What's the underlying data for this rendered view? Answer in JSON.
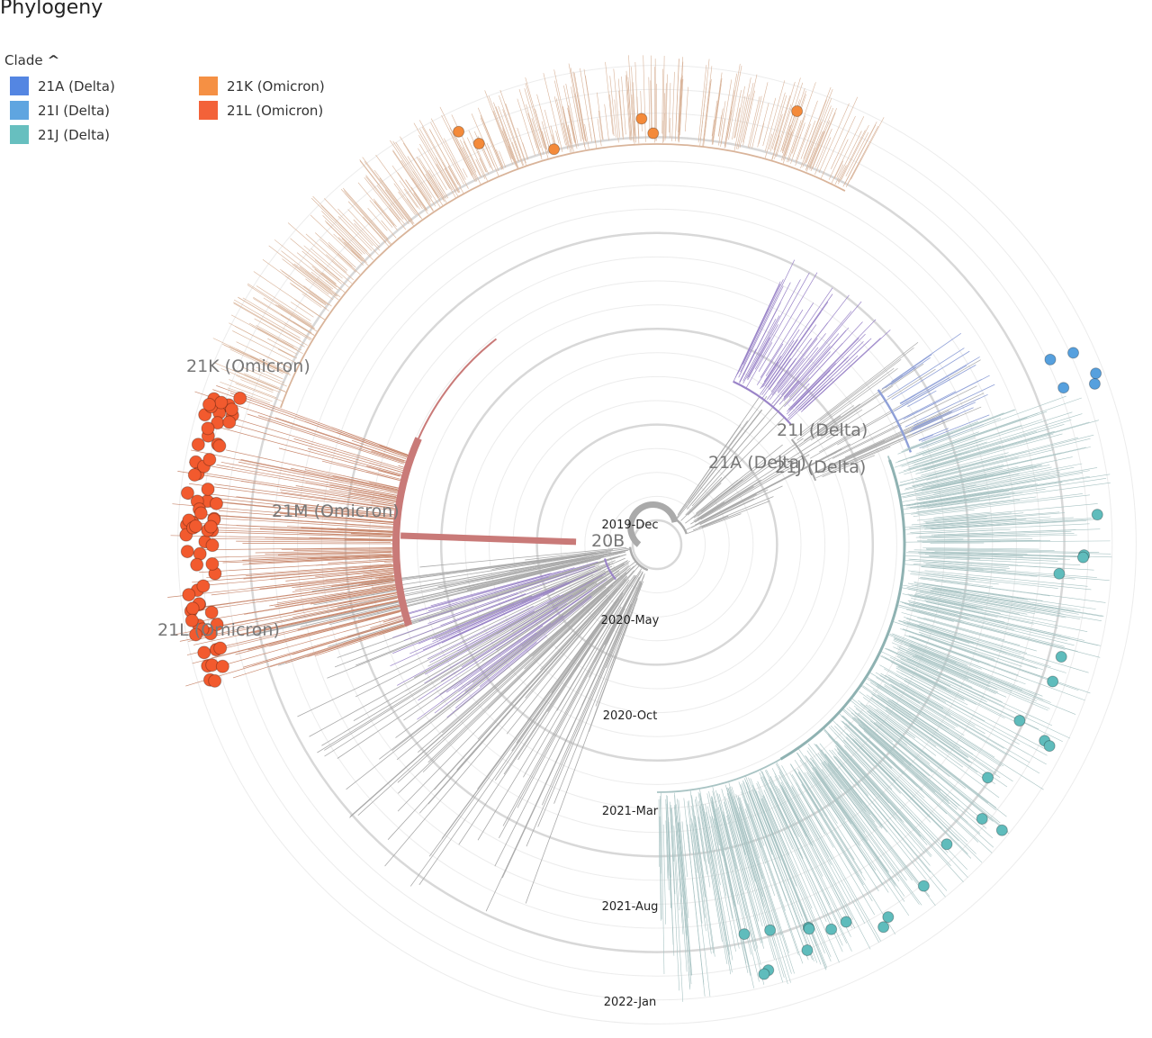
{
  "title": "Phylogeny",
  "legend": {
    "label": "Clade",
    "items": [
      {
        "label": "21A (Delta)",
        "color": "#4b7fe0"
      },
      {
        "label": "21I (Delta)",
        "color": "#56a0de"
      },
      {
        "label": "21J (Delta)",
        "color": "#5fbcbc"
      },
      {
        "label": "21K (Omicron)",
        "color": "#f48a3a"
      },
      {
        "label": "21L (Omicron)",
        "color": "#f25a2e"
      }
    ]
  },
  "chart_data": {
    "type": "radial-phylogeny",
    "time_axis": [
      "2019-Dec",
      "2020-May",
      "2020-Oct",
      "2021-Mar",
      "2021-Aug",
      "2022-Jan"
    ],
    "clade_labels": [
      "20B",
      "21A (Delta)",
      "21I (Delta)",
      "21J (Delta)",
      "21K (Omicron)",
      "21L (Omicron)",
      "21M (Omicron)"
    ],
    "branch_colors": {
      "basal": "#aaaaaa",
      "omicron": "#c98a70",
      "omicron_tan": "#d9b49a",
      "delta": "#a9c4c4",
      "purple": "#9a84c8",
      "trunk": "#c97a78"
    }
  }
}
